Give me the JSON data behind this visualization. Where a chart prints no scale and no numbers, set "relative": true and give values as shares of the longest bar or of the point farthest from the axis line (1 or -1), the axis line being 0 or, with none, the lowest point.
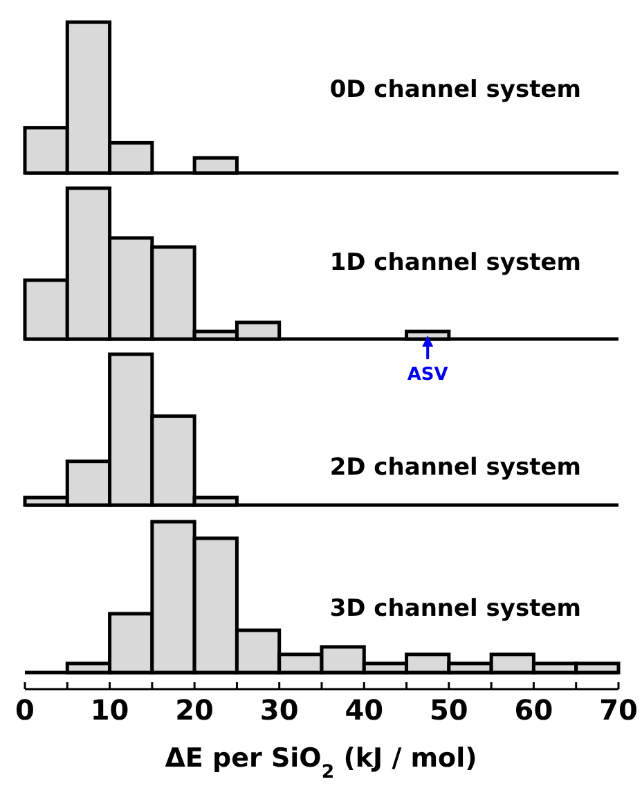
{
  "chart_data": [
    {
      "type": "bar",
      "title": "0D channel system",
      "relative": true,
      "color": "#d9d9d9",
      "x": [
        2.5,
        7.5,
        12.5,
        17.5,
        22.5,
        27.5,
        32.5,
        37.5,
        42.5,
        47.5,
        52.5,
        57.5,
        62.5,
        67.5
      ],
      "values": [
        0.3,
        1,
        0.2,
        0,
        0.1,
        0,
        0,
        0,
        0,
        0,
        0,
        0,
        0,
        0
      ],
      "xlim": [
        0,
        70
      ],
      "tick_labels": false
    },
    {
      "type": "bar",
      "title": "1D channel system",
      "relative": true,
      "color": "#d9d9d9",
      "x": [
        2.5,
        7.5,
        12.5,
        17.5,
        22.5,
        27.5,
        32.5,
        37.5,
        42.5,
        47.5,
        52.5,
        57.5,
        62.5,
        67.5
      ],
      "values": [
        0.39,
        1,
        0.67,
        0.61,
        0.05,
        0.11,
        0,
        0,
        0,
        0.05,
        0,
        0,
        0,
        0
      ],
      "xlim": [
        0,
        70
      ],
      "tick_labels": false,
      "annotations": [
        {
          "text": "ASV",
          "x": 47.5,
          "y": 0.05
        }
      ]
    },
    {
      "type": "bar",
      "title": "2D channel system",
      "relative": true,
      "color": "#d9d9d9",
      "x": [
        2.5,
        7.5,
        12.5,
        17.5,
        22.5,
        27.5,
        32.5,
        37.5,
        42.5,
        47.5,
        52.5,
        57.5,
        62.5,
        67.5
      ],
      "values": [
        0.05,
        0.29,
        1,
        0.59,
        0.05,
        0,
        0,
        0,
        0,
        0,
        0,
        0,
        0,
        0
      ],
      "xlim": [
        0,
        70
      ],
      "tick_labels": false
    },
    {
      "type": "bar",
      "title": "3D channel system",
      "relative": true,
      "color": "#d9d9d9",
      "x": [
        2.5,
        7.5,
        12.5,
        17.5,
        22.5,
        27.5,
        32.5,
        37.5,
        42.5,
        47.5,
        52.5,
        57.5,
        62.5,
        67.5
      ],
      "values": [
        0,
        0.06,
        0.39,
        1,
        0.89,
        0.28,
        0.12,
        0.17,
        0.06,
        0.12,
        0.06,
        0.12,
        0.06,
        0.06
      ],
      "xlim": [
        0,
        70
      ],
      "xlabel": "ΔE per SiO$_{2}$ (kJ / mol)",
      "xticks": [
        0,
        {
          "value": 5,
          "label": null
        },
        10,
        {
          "value": 15,
          "label": null
        },
        20,
        {
          "value": 25,
          "label": null
        },
        30,
        {
          "value": 35,
          "label": null
        },
        40,
        {
          "value": 45,
          "label": null
        },
        50,
        {
          "value": 55,
          "label": null
        },
        60,
        {
          "value": 65,
          "label": null
        },
        70
      ]
    }
  ]
}
